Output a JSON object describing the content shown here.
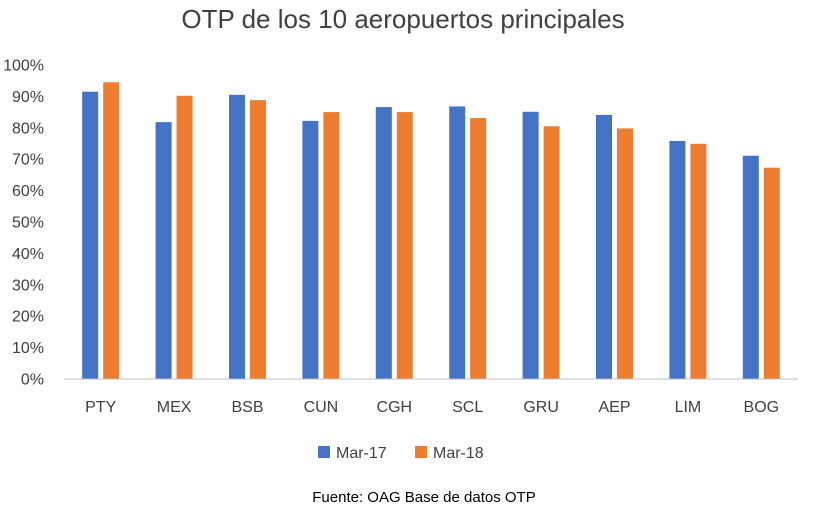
{
  "chart_data": {
    "type": "bar",
    "title": "OTP de los 10 aeropuertos principales",
    "xlabel": "",
    "ylabel": "",
    "ylim": [
      0,
      1
    ],
    "yticks": [
      0,
      0.1,
      0.2,
      0.3,
      0.4,
      0.5,
      0.6,
      0.7,
      0.8,
      0.9,
      1.0
    ],
    "ytick_labels": [
      "0%",
      "10%",
      "20%",
      "30%",
      "40%",
      "50%",
      "60%",
      "70%",
      "80%",
      "90%",
      "100%"
    ],
    "grid": false,
    "legend_position": "bottom",
    "categories": [
      "PTY",
      "MEX",
      "BSB",
      "CUN",
      "CGH",
      "SCL",
      "GRU",
      "AEP",
      "LIM",
      "BOG"
    ],
    "series": [
      {
        "name": "Mar-17",
        "color": "#4472C4",
        "values": [
          0.915,
          0.818,
          0.905,
          0.822,
          0.866,
          0.868,
          0.851,
          0.841,
          0.758,
          0.711
        ]
      },
      {
        "name": "Mar-18",
        "color": "#ED7D31",
        "values": [
          0.945,
          0.902,
          0.888,
          0.85,
          0.85,
          0.831,
          0.805,
          0.798,
          0.749,
          0.673
        ]
      }
    ],
    "source_note": "Fuente: OAG Base de datos OTP"
  },
  "colors": {
    "axis": "#BFBFBF",
    "text": "#404040"
  }
}
